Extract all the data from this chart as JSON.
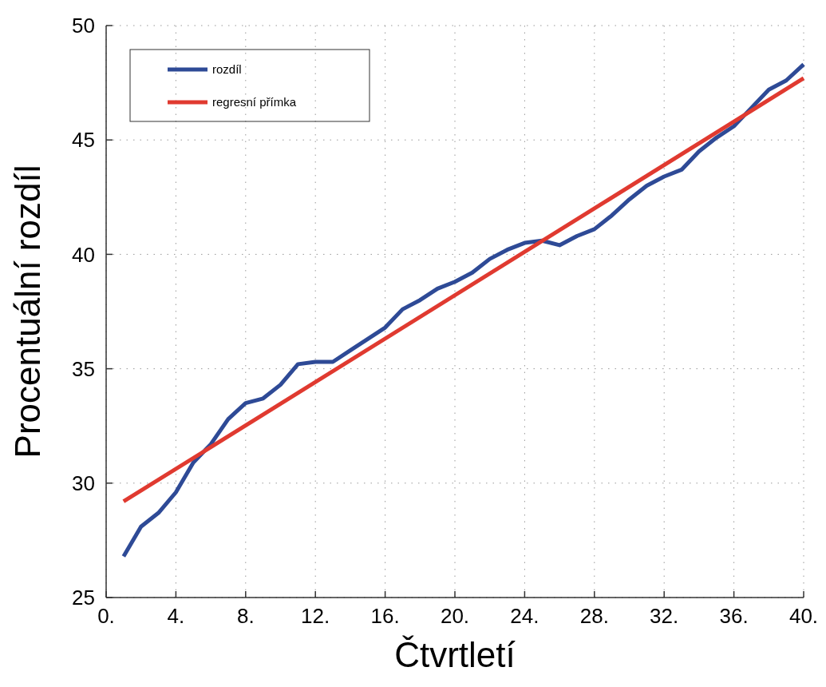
{
  "chart_data": {
    "type": "line",
    "xlabel": "Čtvrtletí",
    "ylabel": "Procentuální rozdíl",
    "xlim": [
      0,
      40
    ],
    "ylim": [
      25,
      50
    ],
    "xticks": [
      {
        "value": 0,
        "label": "0."
      },
      {
        "value": 4,
        "label": "4."
      },
      {
        "value": 8,
        "label": "8."
      },
      {
        "value": 12,
        "label": "12."
      },
      {
        "value": 16,
        "label": "16."
      },
      {
        "value": 20,
        "label": "20."
      },
      {
        "value": 24,
        "label": "24."
      },
      {
        "value": 28,
        "label": "28."
      },
      {
        "value": 32,
        "label": "32."
      },
      {
        "value": 36,
        "label": "36."
      },
      {
        "value": 40,
        "label": "40."
      }
    ],
    "yticks": [
      25,
      30,
      35,
      40,
      45,
      50
    ],
    "grid": true,
    "legend": "top left",
    "line_style": "solid",
    "series": [
      {
        "name": "rozdíl",
        "color": "#2e4a96",
        "x": [
          1,
          2,
          3,
          4,
          5,
          6,
          7,
          8,
          9,
          10,
          11,
          12,
          13,
          14,
          15,
          16,
          17,
          18,
          19,
          20,
          21,
          22,
          23,
          24,
          25,
          26,
          27,
          28,
          29,
          30,
          31,
          32,
          33,
          34,
          35,
          36,
          37,
          38,
          39,
          40
        ],
        "values": [
          26.8,
          28.1,
          28.7,
          29.6,
          30.9,
          31.7,
          32.8,
          33.5,
          33.7,
          34.3,
          35.2,
          35.3,
          35.3,
          35.8,
          36.3,
          36.8,
          37.6,
          38.0,
          38.5,
          38.8,
          39.2,
          39.8,
          40.2,
          40.5,
          40.6,
          40.4,
          40.8,
          41.1,
          41.7,
          42.4,
          43.0,
          43.4,
          43.7,
          44.5,
          45.1,
          45.6,
          46.4,
          47.2,
          47.6,
          48.3
        ]
      },
      {
        "name": "regresní přímka",
        "color": "#e03a30",
        "x": [
          1,
          40
        ],
        "values": [
          29.2,
          47.7
        ]
      }
    ]
  }
}
